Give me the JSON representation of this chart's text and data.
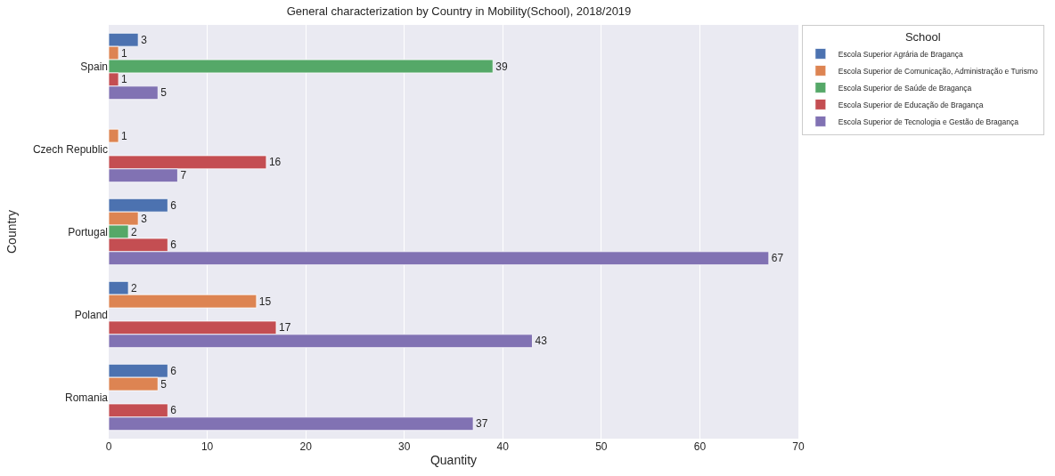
{
  "chart_data": {
    "type": "bar",
    "orientation": "horizontal",
    "title": "General characterization by Country in Mobility(School), 2018/2019",
    "xlabel": "Quantity",
    "ylabel": "Country",
    "legend_title": "School",
    "categories": [
      "Spain",
      "Czech Republic",
      "Portugal",
      "Poland",
      "Romania"
    ],
    "series": [
      {
        "name": "Escola Superior Agrária de Bragança",
        "color": "#4c72b0",
        "values": [
          3,
          null,
          6,
          2,
          6
        ]
      },
      {
        "name": "Escola Superior de Comunicação, Administração e Turismo",
        "color": "#dd8452",
        "values": [
          1,
          1,
          3,
          15,
          5
        ]
      },
      {
        "name": "Escola Superior de Saúde de Bragança",
        "color": "#55a868",
        "values": [
          39,
          null,
          2,
          null,
          null
        ]
      },
      {
        "name": "Escola Superior de Educação de Bragança",
        "color": "#c44e52",
        "values": [
          1,
          16,
          6,
          17,
          6
        ]
      },
      {
        "name": "Escola Superior de Tecnologia e Gestão de Bragança",
        "color": "#8172b3",
        "values": [
          5,
          7,
          67,
          43,
          37
        ]
      }
    ],
    "xlim": [
      0,
      70
    ],
    "xticks": [
      0,
      10,
      20,
      30,
      40,
      50,
      60,
      70
    ],
    "grid": "x",
    "legend": "top right",
    "data_labels": true
  }
}
